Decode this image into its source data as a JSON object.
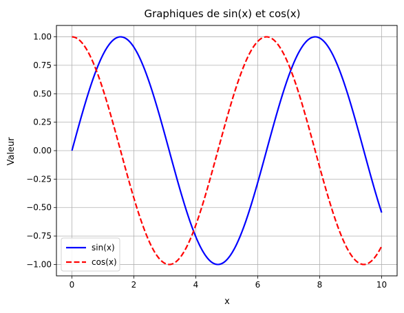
{
  "chart_data": {
    "type": "line",
    "title": "Graphiques de sin(x) et cos(x)",
    "xlabel": "x",
    "ylabel": "Valeur",
    "xlim": [
      -0.5,
      10.5
    ],
    "ylim": [
      -1.1,
      1.1
    ],
    "xticks": [
      0,
      2,
      4,
      6,
      8,
      10
    ],
    "xtick_labels": [
      "0",
      "2",
      "4",
      "6",
      "8",
      "10"
    ],
    "yticks": [
      -1.0,
      -0.75,
      -0.5,
      -0.25,
      0.0,
      0.25,
      0.5,
      0.75,
      1.0
    ],
    "ytick_labels": [
      "−1.00",
      "−0.75",
      "−0.50",
      "−0.25",
      "0.00",
      "0.25",
      "0.50",
      "0.75",
      "1.00"
    ],
    "grid": true,
    "legend_position": "lower-left",
    "series": [
      {
        "name": "sin(x)",
        "color": "#0000ff",
        "style": "solid",
        "x": [
          0,
          0.25,
          0.5,
          0.75,
          1.0,
          1.25,
          1.5,
          1.75,
          2.0,
          2.25,
          2.5,
          2.75,
          3.0,
          3.25,
          3.5,
          3.75,
          4.0,
          4.25,
          4.5,
          4.75,
          5.0,
          5.25,
          5.5,
          5.75,
          6.0,
          6.25,
          6.5,
          6.75,
          7.0,
          7.25,
          7.5,
          7.75,
          8.0,
          8.25,
          8.5,
          8.75,
          9.0,
          9.25,
          9.5,
          9.75,
          10.0
        ],
        "values": [
          0.0,
          0.247,
          0.479,
          0.682,
          0.841,
          0.949,
          0.997,
          0.984,
          0.909,
          0.778,
          0.598,
          0.382,
          0.141,
          -0.108,
          -0.351,
          -0.572,
          -0.757,
          -0.895,
          -0.978,
          -0.999,
          -0.959,
          -0.859,
          -0.706,
          -0.508,
          -0.279,
          -0.033,
          0.215,
          0.45,
          0.657,
          0.823,
          0.938,
          0.995,
          0.989,
          0.923,
          0.798,
          0.625,
          0.412,
          0.174,
          -0.075,
          -0.319,
          -0.544
        ]
      },
      {
        "name": "cos(x)",
        "color": "#ff0000",
        "style": "dashed",
        "x": [
          0,
          0.25,
          0.5,
          0.75,
          1.0,
          1.25,
          1.5,
          1.75,
          2.0,
          2.25,
          2.5,
          2.75,
          3.0,
          3.25,
          3.5,
          3.75,
          4.0,
          4.25,
          4.5,
          4.75,
          5.0,
          5.25,
          5.5,
          5.75,
          6.0,
          6.25,
          6.5,
          6.75,
          7.0,
          7.25,
          7.5,
          7.75,
          8.0,
          8.25,
          8.5,
          8.75,
          9.0,
          9.25,
          9.5,
          9.75,
          10.0
        ],
        "values": [
          1.0,
          0.969,
          0.878,
          0.732,
          0.54,
          0.315,
          0.071,
          -0.178,
          -0.416,
          -0.628,
          -0.801,
          -0.924,
          -0.99,
          -0.994,
          -0.936,
          -0.82,
          -0.654,
          -0.446,
          -0.211,
          0.038,
          0.284,
          0.512,
          0.709,
          0.861,
          0.96,
          0.999,
          0.977,
          0.893,
          0.754,
          0.568,
          0.347,
          0.105,
          -0.146,
          -0.386,
          -0.602,
          -0.781,
          -0.911,
          -0.985,
          -0.997,
          -0.948,
          -0.839
        ]
      }
    ]
  }
}
